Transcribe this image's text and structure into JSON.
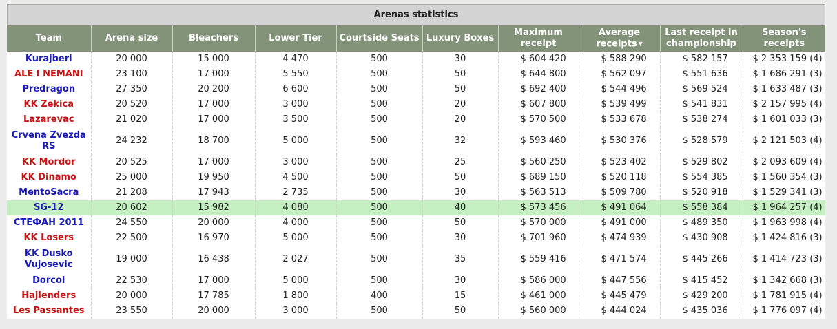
{
  "title": "Arenas statistics",
  "colors": {
    "header_bg": "#839379",
    "highlight": "#c4efc0",
    "team_blue": "#1a1ab8",
    "team_red": "#c81414"
  },
  "columns": [
    "Team",
    "Arena size",
    "Bleachers",
    "Lower Tier",
    "Courtside Seats",
    "Luxury Boxes",
    "Maximum receipt",
    "Average receipts",
    "Last receipt in championship",
    "Season's receipts"
  ],
  "sort_indicator": "▼",
  "rows": [
    {
      "team": "Kurajberi",
      "team_color": "blue",
      "arena_size": "20 000",
      "bleachers": "15 000",
      "lower_tier": "4 470",
      "courtside": "500",
      "luxury": "30",
      "max_receipt": "$ 604 420",
      "avg_receipts": "$ 588 290",
      "last_receipt": "$ 582 157",
      "season_receipts": "$ 2 353 159 (4)"
    },
    {
      "team": "ALE I NEMANI",
      "team_color": "red",
      "arena_size": "23 100",
      "bleachers": "17 000",
      "lower_tier": "5 550",
      "courtside": "500",
      "luxury": "50",
      "max_receipt": "$ 644 800",
      "avg_receipts": "$ 562 097",
      "last_receipt": "$ 551 636",
      "season_receipts": "$ 1 686 291 (3)"
    },
    {
      "team": "Predragon",
      "team_color": "blue",
      "arena_size": "27 350",
      "bleachers": "20 200",
      "lower_tier": "6 600",
      "courtside": "500",
      "luxury": "50",
      "max_receipt": "$ 692 400",
      "avg_receipts": "$ 544 496",
      "last_receipt": "$ 569 524",
      "season_receipts": "$ 1 633 487 (3)"
    },
    {
      "team": "KK Zekica",
      "team_color": "red",
      "arena_size": "20 520",
      "bleachers": "17 000",
      "lower_tier": "3 000",
      "courtside": "500",
      "luxury": "20",
      "max_receipt": "$ 607 800",
      "avg_receipts": "$ 539 499",
      "last_receipt": "$ 541 831",
      "season_receipts": "$ 2 157 995 (4)"
    },
    {
      "team": "Lazarevac",
      "team_color": "red",
      "arena_size": "21 020",
      "bleachers": "17 000",
      "lower_tier": "3 500",
      "courtside": "500",
      "luxury": "20",
      "max_receipt": "$ 570 500",
      "avg_receipts": "$ 533 678",
      "last_receipt": "$ 538 274",
      "season_receipts": "$ 1 601 033 (3)"
    },
    {
      "team": "Crvena Zvezda RS",
      "team_color": "blue",
      "tall": true,
      "arena_size": "24 232",
      "bleachers": "18 700",
      "lower_tier": "5 000",
      "courtside": "500",
      "luxury": "32",
      "max_receipt": "$ 593 460",
      "avg_receipts": "$ 530 376",
      "last_receipt": "$ 528 579",
      "season_receipts": "$ 2 121 503 (4)"
    },
    {
      "team": "KK Mordor",
      "team_color": "red",
      "arena_size": "20 525",
      "bleachers": "17 000",
      "lower_tier": "3 000",
      "courtside": "500",
      "luxury": "25",
      "max_receipt": "$ 560 250",
      "avg_receipts": "$ 523 402",
      "last_receipt": "$ 529 802",
      "season_receipts": "$ 2 093 609 (4)"
    },
    {
      "team": "KK Dinamo",
      "team_color": "red",
      "arena_size": "25 000",
      "bleachers": "19 950",
      "lower_tier": "4 500",
      "courtside": "500",
      "luxury": "50",
      "max_receipt": "$ 689 150",
      "avg_receipts": "$ 520 118",
      "last_receipt": "$ 554 385",
      "season_receipts": "$ 1 560 354 (3)"
    },
    {
      "team": "MentoSacra",
      "team_color": "blue",
      "arena_size": "21 208",
      "bleachers": "17 943",
      "lower_tier": "2 735",
      "courtside": "500",
      "luxury": "30",
      "max_receipt": "$ 563 513",
      "avg_receipts": "$ 509 780",
      "last_receipt": "$ 520 918",
      "season_receipts": "$ 1 529 341 (3)"
    },
    {
      "team": "SG-12",
      "team_color": "blue",
      "highlight": true,
      "arena_size": "20 602",
      "bleachers": "15 982",
      "lower_tier": "4 080",
      "courtside": "500",
      "luxury": "40",
      "max_receipt": "$ 573 456",
      "avg_receipts": "$ 491 064",
      "last_receipt": "$ 558 384",
      "season_receipts": "$ 1 964 257 (4)"
    },
    {
      "team": "СТЕФАН 2011",
      "team_color": "blue",
      "arena_size": "24 550",
      "bleachers": "20 000",
      "lower_tier": "4 000",
      "courtside": "500",
      "luxury": "50",
      "max_receipt": "$ 570 000",
      "avg_receipts": "$ 491 000",
      "last_receipt": "$ 489 350",
      "season_receipts": "$ 1 963 998 (4)"
    },
    {
      "team": "KK Losers",
      "team_color": "red",
      "arena_size": "22 500",
      "bleachers": "16 970",
      "lower_tier": "5 000",
      "courtside": "500",
      "luxury": "30",
      "max_receipt": "$ 701 960",
      "avg_receipts": "$ 474 939",
      "last_receipt": "$ 430 908",
      "season_receipts": "$ 1 424 816 (3)"
    },
    {
      "team": "KK Dusko Vujosevic",
      "team_color": "blue",
      "tall": true,
      "arena_size": "19 000",
      "bleachers": "16 438",
      "lower_tier": "2 027",
      "courtside": "500",
      "luxury": "35",
      "max_receipt": "$ 559 416",
      "avg_receipts": "$ 471 574",
      "last_receipt": "$ 445 266",
      "season_receipts": "$ 1 414 723 (3)"
    },
    {
      "team": "Dorcol",
      "team_color": "blue",
      "arena_size": "22 530",
      "bleachers": "17 000",
      "lower_tier": "5 000",
      "courtside": "500",
      "luxury": "30",
      "max_receipt": "$ 586 000",
      "avg_receipts": "$ 447 556",
      "last_receipt": "$ 415 452",
      "season_receipts": "$ 1 342 668 (3)"
    },
    {
      "team": "Hajlenders",
      "team_color": "red",
      "arena_size": "20 000",
      "bleachers": "17 785",
      "lower_tier": "1 800",
      "courtside": "400",
      "luxury": "15",
      "max_receipt": "$ 461 000",
      "avg_receipts": "$ 445 479",
      "last_receipt": "$ 429 200",
      "season_receipts": "$ 1 781 915 (4)"
    },
    {
      "team": "Les Passantes",
      "team_color": "red",
      "arena_size": "23 550",
      "bleachers": "20 000",
      "lower_tier": "3 000",
      "courtside": "500",
      "luxury": "50",
      "max_receipt": "$ 560 000",
      "avg_receipts": "$ 444 024",
      "last_receipt": "$ 435 036",
      "season_receipts": "$ 1 776 097 (4)"
    }
  ]
}
